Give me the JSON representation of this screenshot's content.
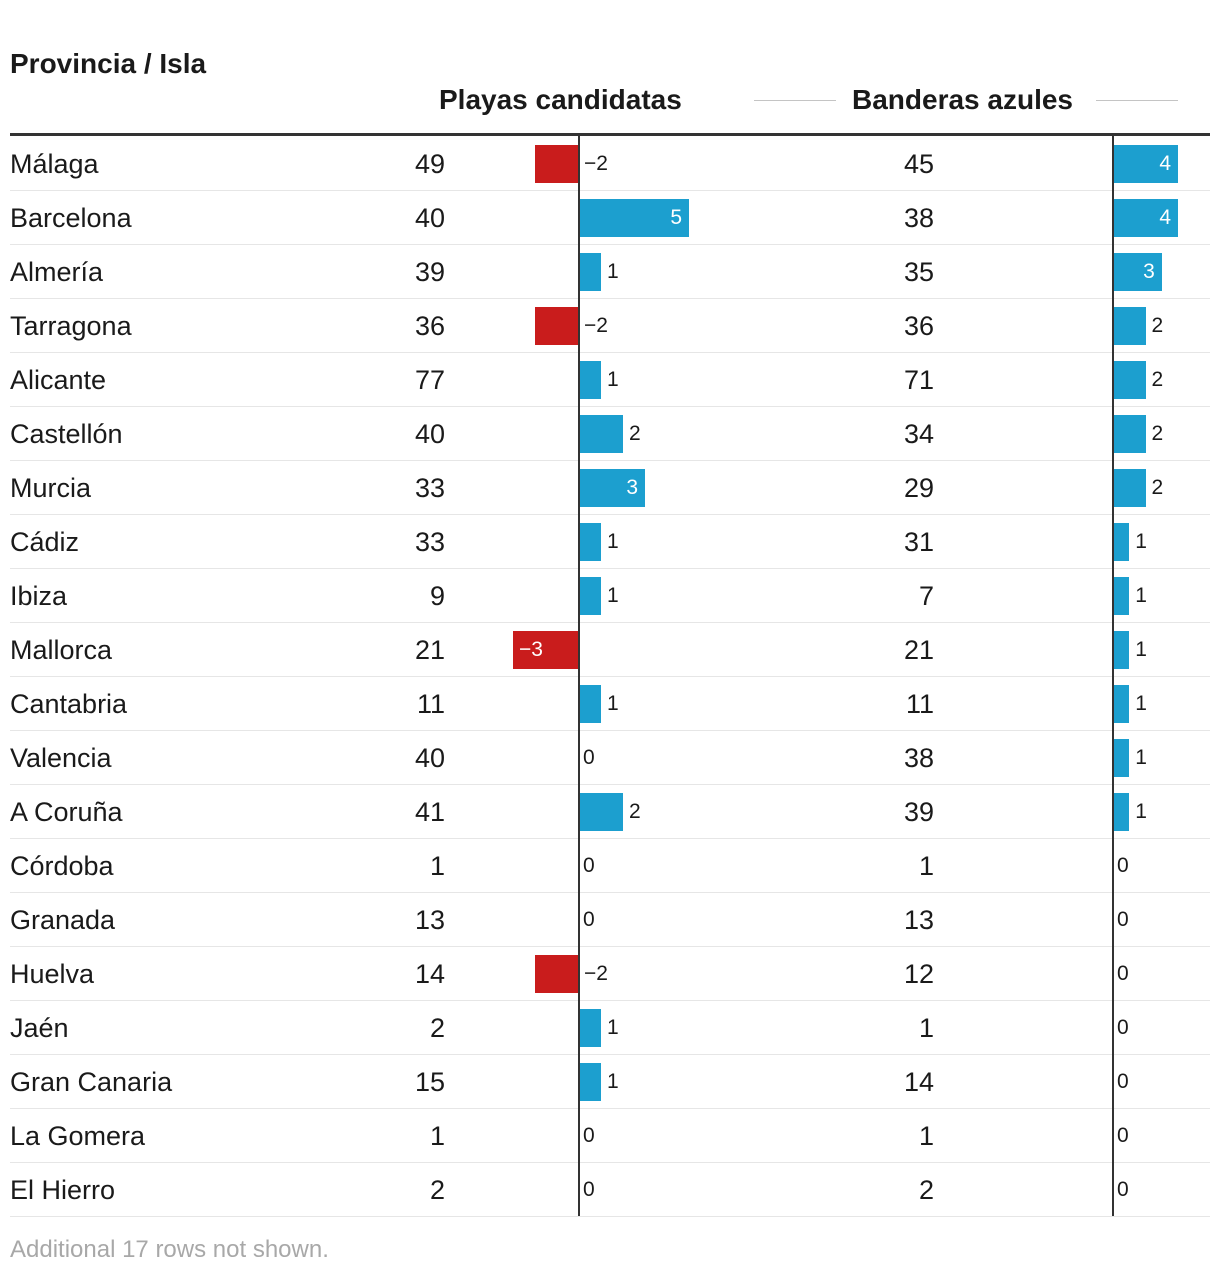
{
  "chart_data": {
    "type": "table",
    "columns": {
      "name": "Provincia / Isla",
      "playas": "Playas candidatas",
      "banderas": "Banderas azules"
    },
    "rows": [
      {
        "name": "Málaga",
        "playas": 49,
        "playas_change": -2,
        "playas_label": "−2",
        "banderas": 45,
        "banderas_change": 4,
        "banderas_label": "4"
      },
      {
        "name": "Barcelona",
        "playas": 40,
        "playas_change": 5,
        "playas_label": "5",
        "banderas": 38,
        "banderas_change": 4,
        "banderas_label": "4"
      },
      {
        "name": "Almería",
        "playas": 39,
        "playas_change": 1,
        "playas_label": "1",
        "banderas": 35,
        "banderas_change": 3,
        "banderas_label": "3"
      },
      {
        "name": "Tarragona",
        "playas": 36,
        "playas_change": -2,
        "playas_label": "−2",
        "banderas": 36,
        "banderas_change": 2,
        "banderas_label": "2"
      },
      {
        "name": "Alicante",
        "playas": 77,
        "playas_change": 1,
        "playas_label": "1",
        "banderas": 71,
        "banderas_change": 2,
        "banderas_label": "2"
      },
      {
        "name": "Castellón",
        "playas": 40,
        "playas_change": 2,
        "playas_label": "2",
        "banderas": 34,
        "banderas_change": 2,
        "banderas_label": "2"
      },
      {
        "name": "Murcia",
        "playas": 33,
        "playas_change": 3,
        "playas_label": "3",
        "banderas": 29,
        "banderas_change": 2,
        "banderas_label": "2"
      },
      {
        "name": "Cádiz",
        "playas": 33,
        "playas_change": 1,
        "playas_label": "1",
        "banderas": 31,
        "banderas_change": 1,
        "banderas_label": "1"
      },
      {
        "name": "Ibiza",
        "playas": 9,
        "playas_change": 1,
        "playas_label": "1",
        "banderas": 7,
        "banderas_change": 1,
        "banderas_label": "1"
      },
      {
        "name": "Mallorca",
        "playas": 21,
        "playas_change": -3,
        "playas_label": "−3",
        "banderas": 21,
        "banderas_change": 1,
        "banderas_label": "1"
      },
      {
        "name": "Cantabria",
        "playas": 11,
        "playas_change": 1,
        "playas_label": "1",
        "banderas": 11,
        "banderas_change": 1,
        "banderas_label": "1"
      },
      {
        "name": "Valencia",
        "playas": 40,
        "playas_change": 0,
        "playas_label": "0",
        "banderas": 38,
        "banderas_change": 1,
        "banderas_label": "1"
      },
      {
        "name": "A Coruña",
        "playas": 41,
        "playas_change": 2,
        "playas_label": "2",
        "banderas": 39,
        "banderas_change": 1,
        "banderas_label": "1"
      },
      {
        "name": "Córdoba",
        "playas": 1,
        "playas_change": 0,
        "playas_label": "0",
        "banderas": 1,
        "banderas_change": 0,
        "banderas_label": "0"
      },
      {
        "name": "Granada",
        "playas": 13,
        "playas_change": 0,
        "playas_label": "0",
        "banderas": 13,
        "banderas_change": 0,
        "banderas_label": "0"
      },
      {
        "name": "Huelva",
        "playas": 14,
        "playas_change": -2,
        "playas_label": "−2",
        "banderas": 12,
        "banderas_change": 0,
        "banderas_label": "0"
      },
      {
        "name": "Jaén",
        "playas": 2,
        "playas_change": 1,
        "playas_label": "1",
        "banderas": 1,
        "banderas_change": 0,
        "banderas_label": "0"
      },
      {
        "name": "Gran Canaria",
        "playas": 15,
        "playas_change": 1,
        "playas_label": "1",
        "banderas": 14,
        "banderas_change": 0,
        "banderas_label": "0"
      },
      {
        "name": "La Gomera",
        "playas": 1,
        "playas_change": 0,
        "playas_label": "0",
        "banderas": 1,
        "banderas_change": 0,
        "banderas_label": "0"
      },
      {
        "name": "El Hierro",
        "playas": 2,
        "playas_change": 0,
        "playas_label": "0",
        "banderas": 2,
        "banderas_change": 0,
        "banderas_label": "0"
      }
    ],
    "footer": "Additional 17 rows not shown.",
    "colors": {
      "positive": "#1c9fcf",
      "negative": "#c91c1c"
    }
  }
}
